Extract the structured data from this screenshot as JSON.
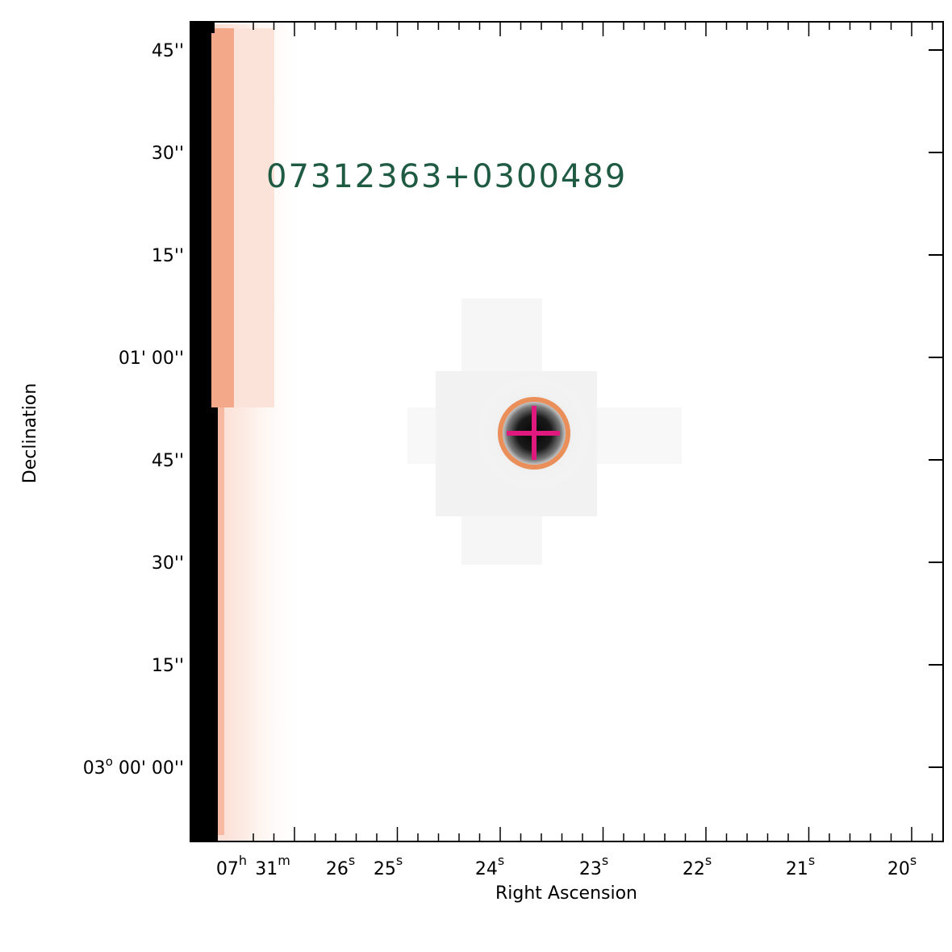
{
  "image": {
    "object_label": "07312363+0300489",
    "colors": {
      "label": "#1f5a43",
      "aperture_circle": "#ea8f5a",
      "crosshair": "#e0197e",
      "edge_strip": "#000000",
      "edge_glow": "#f6b49a",
      "frame": "#000000"
    }
  },
  "chart_data": {
    "type": "scatter",
    "title": "",
    "xlabel": "Right Ascension",
    "ylabel": "Declination",
    "x_ticks": [
      {
        "label": "07",
        "sup": "h"
      },
      {
        "label": "31",
        "sup": "m"
      },
      {
        "label": "26",
        "sup": "s"
      },
      {
        "label": "25",
        "sup": "s"
      },
      {
        "label": "24",
        "sup": "s"
      },
      {
        "label": "23",
        "sup": "s"
      },
      {
        "label": "22",
        "sup": "s"
      },
      {
        "label": "21",
        "sup": "s"
      },
      {
        "label": "20",
        "sup": "s"
      }
    ],
    "y_ticks": [
      {
        "pre": "",
        "sup": "",
        "label": "45''"
      },
      {
        "pre": "",
        "sup": "",
        "label": "30''"
      },
      {
        "pre": "",
        "sup": "",
        "label": "15''"
      },
      {
        "pre": "",
        "sup": "",
        "label": "01' 00''"
      },
      {
        "pre": "",
        "sup": "",
        "label": "45''"
      },
      {
        "pre": "",
        "sup": "",
        "label": "30''"
      },
      {
        "pre": "",
        "sup": "",
        "label": "15''"
      },
      {
        "pre": "03",
        "sup": "o",
        "label": "00' 00''"
      }
    ],
    "source": {
      "ra": "07h31m23.63s",
      "dec": "+03°00'48.9''"
    }
  }
}
